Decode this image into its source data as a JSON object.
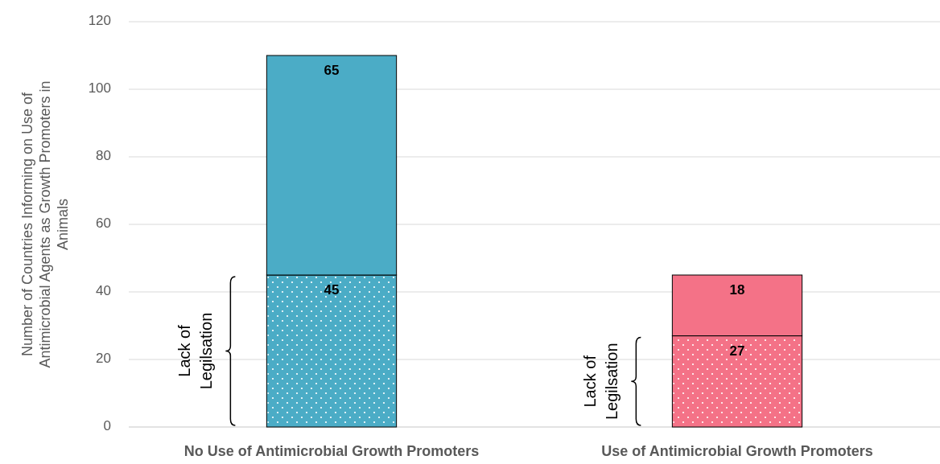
{
  "chart_data": {
    "type": "bar",
    "stacked": true,
    "ylabel": "Number of Countries Informing on Use of Antimicrobial Agents as Growth Promoters in Animals",
    "categories": [
      "No Use of Antimicrobial Growth Promoters",
      "Use of Antimicrobial Growth Promoters"
    ],
    "series": [
      {
        "colors": [
          "#4bacc6",
          "#f47287"
        ],
        "values": [
          45,
          27
        ]
      },
      {
        "colors": [
          "#4bacc6",
          "#f47287"
        ],
        "values": [
          65,
          18
        ]
      }
    ],
    "ylim": [
      0,
      120
    ],
    "yticks": [
      0,
      20,
      40,
      60,
      80,
      100,
      120
    ],
    "grid": "y",
    "data_labels": true,
    "annotations": [
      "Lack of Legilsation",
      "Lack of Legilsation"
    ]
  }
}
